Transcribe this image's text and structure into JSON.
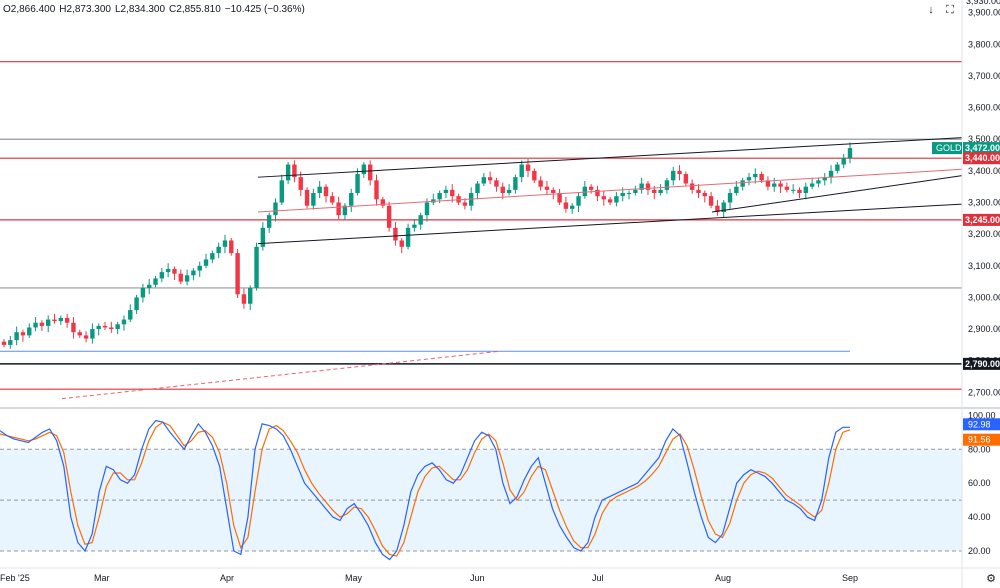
{
  "header": {
    "open": "O2,866.400",
    "high": "H2,873.300",
    "low": "L2,834.300",
    "close": "C2,855.810",
    "change": "−10.425 (−0.36%)",
    "top_label": "3,930.00"
  },
  "toolbar": {
    "down_icon": "arrow-down-icon",
    "fullscreen_icon": "fullscreen-icon"
  },
  "price_axis": {
    "ticks": [
      "3,900.00",
      "3,800.00",
      "3,700.00",
      "3,600.00",
      "3,500.00",
      "3,400.00",
      "3,300.00",
      "3,200.00",
      "3,100.00",
      "3,000.00",
      "2,900.00",
      "2,800.00",
      "2,700.00"
    ],
    "ticks_values": [
      3900,
      3800,
      3700,
      3600,
      3500,
      3400,
      3300,
      3200,
      3100,
      3000,
      2900,
      2800,
      2700
    ]
  },
  "badges": {
    "symbol": "GOLD",
    "last_price": "3,472.00",
    "last_price_value": 3472,
    "level_3440": "3,440.00",
    "level_3440_value": 3440,
    "level_3245": "3,245.00",
    "level_3245_value": 3245,
    "level_2790": "2,790.00",
    "level_2790_value": 2790
  },
  "osc_axis": {
    "ticks": [
      "100.00",
      "80.00",
      "60.00",
      "40.00",
      "20.00"
    ],
    "ticks_values": [
      100,
      80,
      60,
      40,
      20
    ],
    "k_value": "92.98",
    "d_value": "91.56",
    "k_num": 92.98,
    "d_num": 91.56
  },
  "time_axis": {
    "labels": [
      "Feb '25",
      "Mar",
      "Apr",
      "May",
      "Jun",
      "Jul",
      "Aug",
      "Sep"
    ]
  },
  "colors": {
    "up": "#089981",
    "down": "#f23645",
    "k_line": "#2962ff",
    "d_line": "#ff6d00",
    "level_red": "#e0303c",
    "dark_label": "#131722"
  },
  "chart_data": {
    "type": "candlestick",
    "title": "GOLD",
    "ylim": [
      2660,
      3940
    ],
    "x_labels": [
      "Feb '25",
      "Mar",
      "Apr",
      "May",
      "Jun",
      "Jul",
      "Aug",
      "Sep"
    ],
    "horizontal_levels": [
      3745,
      3500,
      3440,
      3245,
      3030,
      2790,
      2710
    ],
    "channel_lines": [
      {
        "from": 3380,
        "to": 3505
      },
      {
        "from": 3270,
        "to": 3405
      },
      {
        "from": 3170,
        "to": 3295
      }
    ],
    "close_series": [
      2850,
      2865,
      2890,
      2880,
      2905,
      2920,
      2910,
      2930,
      2925,
      2935,
      2920,
      2890,
      2880,
      2870,
      2900,
      2910,
      2905,
      2900,
      2915,
      2930,
      2960,
      3000,
      3030,
      3040,
      3060,
      3080,
      3090,
      3075,
      3050,
      3070,
      3085,
      3100,
      3120,
      3140,
      3160,
      3180,
      3140,
      3010,
      2980,
      3030,
      3160,
      3220,
      3260,
      3300,
      3370,
      3420,
      3380,
      3340,
      3290,
      3330,
      3350,
      3320,
      3300,
      3260,
      3290,
      3330,
      3390,
      3420,
      3370,
      3310,
      3290,
      3220,
      3180,
      3160,
      3220,
      3230,
      3260,
      3300,
      3310,
      3330,
      3340,
      3320,
      3300,
      3290,
      3330,
      3360,
      3380,
      3370,
      3350,
      3330,
      3340,
      3380,
      3420,
      3400,
      3370,
      3350,
      3340,
      3330,
      3300,
      3280,
      3290,
      3320,
      3350,
      3340,
      3320,
      3310,
      3300,
      3320,
      3330,
      3330,
      3340,
      3360,
      3340,
      3330,
      3340,
      3370,
      3400,
      3390,
      3360,
      3340,
      3330,
      3320,
      3290,
      3270,
      3300,
      3330,
      3350,
      3370,
      3380,
      3390,
      3370,
      3350,
      3360,
      3350,
      3340,
      3340,
      3330,
      3350,
      3360,
      3370,
      3380,
      3400,
      3420,
      3440,
      3472
    ],
    "stochastic": {
      "k": [
        91,
        88,
        86,
        85,
        84,
        87,
        90,
        92,
        85,
        70,
        40,
        25,
        20,
        30,
        55,
        70,
        68,
        62,
        60,
        65,
        80,
        92,
        97,
        96,
        90,
        85,
        80,
        88,
        95,
        90,
        82,
        70,
        45,
        20,
        18,
        40,
        80,
        95,
        94,
        92,
        88,
        80,
        70,
        60,
        55,
        50,
        45,
        40,
        38,
        45,
        48,
        42,
        35,
        25,
        18,
        15,
        20,
        35,
        55,
        65,
        70,
        72,
        68,
        62,
        60,
        65,
        75,
        85,
        90,
        88,
        80,
        60,
        48,
        52,
        62,
        70,
        75,
        60,
        45,
        35,
        28,
        22,
        20,
        25,
        40,
        50,
        52,
        54,
        56,
        58,
        60,
        65,
        70,
        75,
        85,
        92,
        88,
        72,
        55,
        40,
        28,
        25,
        30,
        45,
        60,
        65,
        68,
        66,
        64,
        60,
        55,
        50,
        48,
        45,
        40,
        38,
        50,
        75,
        90,
        93,
        93
      ],
      "d": [
        89,
        88,
        87,
        86,
        85,
        86,
        88,
        90,
        88,
        78,
        55,
        35,
        24,
        25,
        40,
        58,
        66,
        66,
        62,
        62,
        72,
        85,
        93,
        96,
        94,
        88,
        82,
        85,
        90,
        91,
        87,
        78,
        60,
        35,
        22,
        28,
        55,
        80,
        92,
        94,
        91,
        85,
        78,
        68,
        60,
        54,
        49,
        44,
        40,
        42,
        46,
        45,
        40,
        32,
        23,
        18,
        17,
        25,
        40,
        55,
        64,
        69,
        70,
        66,
        62,
        62,
        68,
        78,
        86,
        89,
        85,
        72,
        56,
        50,
        55,
        64,
        70,
        68,
        56,
        44,
        34,
        26,
        22,
        22,
        30,
        42,
        49,
        52,
        54,
        56,
        58,
        61,
        65,
        70,
        78,
        86,
        89,
        82,
        68,
        52,
        38,
        30,
        28,
        36,
        50,
        60,
        65,
        67,
        66,
        63,
        58,
        53,
        50,
        47,
        43,
        40,
        44,
        60,
        80,
        90,
        91.5
      ]
    },
    "osc_ylim": [
      10,
      102
    ],
    "osc_bands": [
      80,
      50,
      20
    ]
  }
}
